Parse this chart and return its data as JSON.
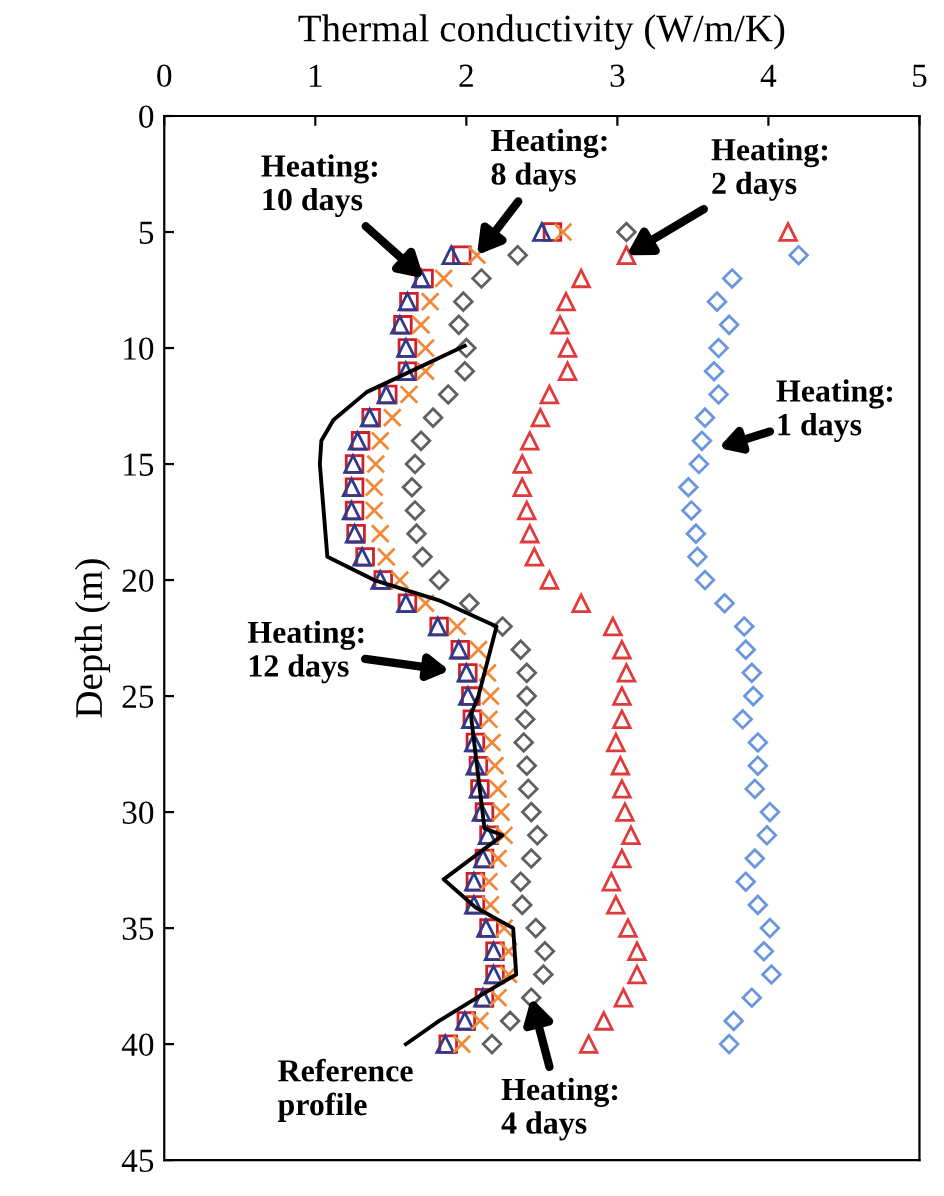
{
  "chart_data": {
    "type": "scatter",
    "xlabel": "Thermal conductivity (W/m/K)",
    "ylabel": "Depth (m)",
    "xlim": [
      0,
      5
    ],
    "xticks": [
      0,
      1,
      2,
      3,
      4,
      5
    ],
    "ylim": [
      45,
      0
    ],
    "yticks": [
      0,
      5,
      10,
      15,
      20,
      25,
      30,
      35,
      40,
      45
    ],
    "grid": false,
    "legend": false,
    "series": [
      {
        "color": "#6a96e0",
        "marker": "diamond",
        "x": [
          4.2,
          3.76,
          3.66,
          3.74,
          3.67,
          3.64,
          3.67,
          3.58,
          3.56,
          3.54,
          3.47,
          3.49,
          3.52,
          3.53,
          3.58,
          3.71,
          3.84,
          3.85,
          3.89,
          3.9,
          3.83,
          3.93,
          3.93,
          3.91,
          4.01,
          3.99,
          3.91,
          3.85,
          3.93,
          4.01,
          3.97,
          4.02,
          3.89,
          3.77,
          3.74
        ],
        "values": [
          6,
          7,
          8,
          9,
          10,
          11,
          12,
          13,
          14,
          15,
          16,
          17,
          18,
          19,
          20,
          21,
          22,
          23,
          24,
          25,
          26,
          27,
          28,
          29,
          30,
          31,
          32,
          33,
          34,
          35,
          36,
          37,
          38,
          39,
          40
        ]
      },
      {
        "color": "#e03a3a",
        "marker": "triangle",
        "x": [
          4.13,
          3.06,
          2.76,
          2.66,
          2.62,
          2.67,
          2.67,
          2.55,
          2.49,
          2.42,
          2.37,
          2.37,
          2.4,
          2.42,
          2.45,
          2.55,
          2.76,
          2.97,
          3.03,
          3.06,
          3.03,
          3.03,
          2.99,
          3.02,
          3.03,
          3.05,
          3.09,
          3.03,
          2.96,
          2.99,
          3.07,
          3.13,
          3.13,
          3.04,
          2.91,
          2.81
        ],
        "values": [
          5,
          6,
          7,
          8,
          9,
          10,
          11,
          12,
          13,
          14,
          15,
          16,
          17,
          18,
          19,
          20,
          21,
          22,
          23,
          24,
          25,
          26,
          27,
          28,
          29,
          30,
          31,
          32,
          33,
          34,
          35,
          36,
          37,
          38,
          39,
          40
        ]
      },
      {
        "color": "#606060",
        "marker": "diamond",
        "x": [
          3.06,
          2.34,
          2.1,
          1.98,
          1.95,
          2.0,
          1.99,
          1.88,
          1.78,
          1.7,
          1.66,
          1.64,
          1.66,
          1.67,
          1.71,
          1.82,
          2.02,
          2.24,
          2.36,
          2.4,
          2.4,
          2.39,
          2.38,
          2.4,
          2.41,
          2.43,
          2.47,
          2.43,
          2.36,
          2.37,
          2.46,
          2.52,
          2.51,
          2.43,
          2.29,
          2.17
        ],
        "values": [
          5,
          6,
          7,
          8,
          9,
          10,
          11,
          12,
          13,
          14,
          15,
          16,
          17,
          18,
          19,
          20,
          21,
          22,
          23,
          24,
          25,
          26,
          27,
          28,
          29,
          30,
          31,
          32,
          33,
          34,
          35,
          36,
          37,
          38,
          39,
          40
        ]
      },
      {
        "color": "#f08a3a",
        "marker": "cross",
        "x": [
          2.64,
          2.07,
          1.85,
          1.76,
          1.7,
          1.73,
          1.73,
          1.62,
          1.51,
          1.43,
          1.4,
          1.39,
          1.39,
          1.43,
          1.47,
          1.56,
          1.73,
          1.94,
          2.08,
          2.14,
          2.16,
          2.15,
          2.17,
          2.19,
          2.21,
          2.23,
          2.25,
          2.21,
          2.15,
          2.16,
          2.25,
          2.28,
          2.28,
          2.21,
          2.09,
          1.97
        ],
        "values": [
          5,
          6,
          7,
          8,
          9,
          10,
          11,
          12,
          13,
          14,
          15,
          16,
          17,
          18,
          19,
          20,
          21,
          22,
          23,
          24,
          25,
          26,
          27,
          28,
          29,
          30,
          31,
          32,
          33,
          34,
          35,
          36,
          37,
          38,
          39,
          40
        ]
      },
      {
        "color": "#d0202a",
        "marker": "square",
        "x": [
          2.57,
          1.97,
          1.72,
          1.62,
          1.58,
          1.61,
          1.61,
          1.48,
          1.37,
          1.3,
          1.26,
          1.26,
          1.26,
          1.27,
          1.33,
          1.45,
          1.61,
          1.82,
          1.96,
          2.01,
          2.03,
          2.04,
          2.06,
          2.08,
          2.09,
          2.12,
          2.15,
          2.12,
          2.06,
          2.06,
          2.15,
          2.19,
          2.19,
          2.12,
          2.0,
          1.88
        ],
        "values": [
          5,
          6,
          7,
          8,
          9,
          10,
          11,
          12,
          13,
          14,
          15,
          16,
          17,
          18,
          19,
          20,
          21,
          22,
          23,
          24,
          25,
          26,
          27,
          28,
          29,
          30,
          31,
          32,
          33,
          34,
          35,
          36,
          37,
          38,
          39,
          40
        ]
      },
      {
        "color": "#2e3a8c",
        "marker": "triangle",
        "x": [
          2.5,
          1.9,
          1.7,
          1.61,
          1.56,
          1.6,
          1.6,
          1.47,
          1.36,
          1.28,
          1.25,
          1.24,
          1.24,
          1.26,
          1.31,
          1.43,
          1.6,
          1.81,
          1.95,
          2.0,
          2.01,
          2.03,
          2.05,
          2.06,
          2.08,
          2.1,
          2.14,
          2.11,
          2.05,
          2.05,
          2.13,
          2.18,
          2.18,
          2.11,
          1.99,
          1.86
        ],
        "values": [
          5,
          6,
          7,
          8,
          9,
          10,
          11,
          12,
          13,
          14,
          15,
          16,
          17,
          18,
          19,
          20,
          21,
          22,
          23,
          24,
          25,
          26,
          27,
          28,
          29,
          30,
          31,
          32,
          33,
          34,
          35,
          36,
          37,
          38,
          39,
          40
        ]
      },
      {
        "type": "line",
        "color": "#000000",
        "marker": "none",
        "line_style": "solid",
        "x": [
          1.99,
          1.34,
          1.12,
          1.04,
          1.03,
          1.08,
          1.39,
          1.83,
          2.2,
          2.08,
          2.03,
          2.12,
          2.24,
          1.85,
          2.06,
          2.31,
          2.33,
          2.12,
          1.82,
          1.6
        ],
        "values": [
          9.9,
          11.9,
          13.1,
          14.0,
          15,
          19,
          20,
          20.9,
          22,
          25,
          25.8,
          30.7,
          31,
          32.9,
          34.1,
          35,
          37,
          37.8,
          39,
          40
        ]
      }
    ],
    "annotations": [
      {
        "text": "Heating:\n10 days",
        "x": 1.72,
        "y": 7
      },
      {
        "text": "Heating:\n8 days",
        "x": 2.07,
        "y": 6
      },
      {
        "text": "Heating:\n2 days",
        "x": 3.06,
        "y": 6
      },
      "Heating:\n1 days",
      "Heating:\n12 days",
      {
        "text": "Heating:\n4 days",
        "x": 2.43,
        "y": 38
      },
      "Reference\nprofile"
    ]
  }
}
